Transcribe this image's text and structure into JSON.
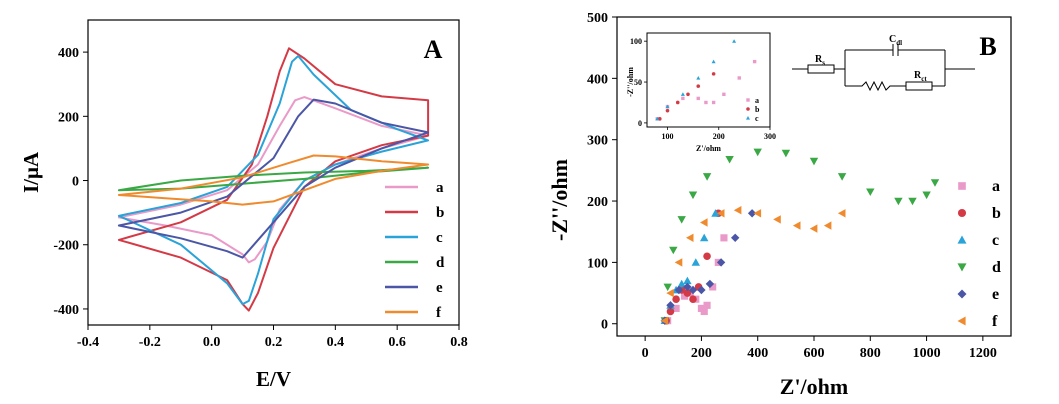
{
  "chart_data": [
    {
      "type": "line",
      "panel_label": "A",
      "xlabel": "E/V",
      "ylabel": "I/μA",
      "xlim": [
        -0.4,
        0.8
      ],
      "ylim": [
        -450,
        500
      ],
      "xticks": [
        "-0.4",
        "-0.2",
        "0.0",
        "0.2",
        "0.4",
        "0.6",
        "0.8"
      ],
      "yticks": [
        "-400",
        "-200",
        "0",
        "200",
        "400"
      ],
      "legend_position": "right",
      "colors": {
        "a": "#ea9ac8",
        "b": "#d43a46",
        "c": "#2aa3d8",
        "d": "#3aa845",
        "e": "#4b57a6",
        "f": "#ef8b2e"
      },
      "series": [
        {
          "name": "a",
          "x": [
            -0.3,
            -0.1,
            0.05,
            0.15,
            0.22,
            0.27,
            0.3,
            0.4,
            0.55,
            0.7,
            0.55,
            0.4,
            0.3,
            0.22,
            0.18,
            0.14,
            0.12,
            0.1,
            0.0,
            -0.15,
            -0.3
          ],
          "y": [
            -115,
            -75,
            -30,
            50,
            170,
            250,
            260,
            225,
            170,
            140,
            100,
            50,
            0,
            -90,
            -190,
            -245,
            -255,
            -230,
            -170,
            -140,
            -115
          ]
        },
        {
          "name": "b",
          "x": [
            -0.3,
            -0.1,
            0.05,
            0.13,
            0.18,
            0.22,
            0.25,
            0.3,
            0.4,
            0.55,
            0.7,
            0.7,
            0.55,
            0.4,
            0.3,
            0.2,
            0.15,
            0.12,
            0.1,
            0.05,
            -0.1,
            -0.3
          ],
          "y": [
            -185,
            -130,
            -60,
            50,
            200,
            340,
            412,
            380,
            300,
            262,
            250,
            140,
            110,
            60,
            -20,
            -210,
            -350,
            -405,
            -385,
            -310,
            -240,
            -185
          ]
        },
        {
          "name": "c",
          "x": [
            -0.3,
            -0.1,
            0.05,
            0.15,
            0.22,
            0.26,
            0.28,
            0.33,
            0.45,
            0.6,
            0.7,
            0.55,
            0.4,
            0.3,
            0.2,
            0.15,
            0.12,
            0.1,
            0.05,
            -0.1,
            -0.3
          ],
          "y": [
            -110,
            -70,
            -20,
            80,
            240,
            370,
            388,
            330,
            220,
            160,
            125,
            90,
            50,
            0,
            -120,
            -290,
            -375,
            -385,
            -320,
            -200,
            -110
          ]
        },
        {
          "name": "d",
          "x": [
            -0.3,
            -0.1,
            0.1,
            0.3,
            0.5,
            0.7,
            0.5,
            0.3,
            0.1,
            -0.1,
            -0.3
          ],
          "y": [
            -30,
            0,
            15,
            25,
            30,
            40,
            25,
            5,
            -10,
            -25,
            -30
          ]
        },
        {
          "name": "e",
          "x": [
            -0.3,
            -0.1,
            0.05,
            0.2,
            0.28,
            0.33,
            0.4,
            0.55,
            0.7,
            0.55,
            0.4,
            0.3,
            0.2,
            0.1,
            0.05,
            -0.1,
            -0.3
          ],
          "y": [
            -140,
            -100,
            -50,
            70,
            200,
            252,
            240,
            180,
            150,
            100,
            40,
            -20,
            -130,
            -240,
            -220,
            -180,
            -140
          ]
        },
        {
          "name": "f",
          "x": [
            -0.3,
            -0.1,
            0.1,
            0.25,
            0.33,
            0.4,
            0.55,
            0.7,
            0.55,
            0.4,
            0.3,
            0.2,
            0.1,
            0.0,
            -0.15,
            -0.3
          ],
          "y": [
            -45,
            -25,
            10,
            55,
            78,
            75,
            60,
            50,
            30,
            5,
            -30,
            -65,
            -75,
            -65,
            -55,
            -45
          ]
        }
      ]
    },
    {
      "type": "scatter",
      "panel_label": "B",
      "xlabel": "Z'/ohm",
      "ylabel": "-Z''/ohm",
      "xlim": [
        -100,
        1300
      ],
      "ylim": [
        -20,
        500
      ],
      "xticks": [
        "0",
        "200",
        "400",
        "600",
        "800",
        "1000",
        "1200"
      ],
      "yticks": [
        "0",
        "100",
        "200",
        "300",
        "400",
        "500"
      ],
      "legend_position": "right",
      "series": [
        {
          "name": "a",
          "color": "#ea9ac8",
          "marker": "square",
          "x": [
            80,
            110,
            140,
            160,
            180,
            200,
            210,
            220,
            240,
            260,
            280
          ],
          "y": [
            5,
            25,
            45,
            50,
            40,
            25,
            20,
            30,
            60,
            100,
            140
          ]
        },
        {
          "name": "b",
          "color": "#d43a46",
          "marker": "circle",
          "x": [
            75,
            90,
            110,
            130,
            150,
            170,
            190,
            220,
            260
          ],
          "y": [
            5,
            20,
            40,
            55,
            50,
            40,
            60,
            110,
            180
          ]
        },
        {
          "name": "c",
          "color": "#2aa3d8",
          "marker": "triangle-up",
          "x": [
            70,
            90,
            110,
            130,
            150,
            180,
            210,
            250
          ],
          "y": [
            5,
            30,
            55,
            65,
            70,
            100,
            140,
            180
          ]
        },
        {
          "name": "d",
          "color": "#3aa845",
          "marker": "triangle-down",
          "x": [
            70,
            80,
            100,
            130,
            170,
            220,
            300,
            400,
            500,
            600,
            700,
            800,
            900,
            950,
            1000,
            1030
          ],
          "y": [
            5,
            60,
            120,
            170,
            210,
            240,
            268,
            280,
            278,
            265,
            240,
            215,
            200,
            200,
            210,
            230
          ]
        },
        {
          "name": "e",
          "color": "#4b57a6",
          "marker": "diamond",
          "x": [
            70,
            90,
            120,
            150,
            170,
            200,
            230,
            270,
            320,
            380
          ],
          "y": [
            5,
            30,
            55,
            60,
            55,
            55,
            65,
            100,
            140,
            180
          ]
        },
        {
          "name": "f",
          "color": "#ef8b2e",
          "marker": "triangle-left",
          "x": [
            70,
            90,
            120,
            160,
            210,
            270,
            330,
            400,
            470,
            540,
            600,
            650,
            700
          ],
          "y": [
            5,
            50,
            100,
            140,
            165,
            180,
            185,
            180,
            170,
            160,
            155,
            160,
            180
          ]
        }
      ],
      "inset": {
        "xlabel": "Z'/ohm",
        "ylabel": "-Z''/ohm",
        "xlim": [
          60,
          300
        ],
        "ylim": [
          -5,
          110
        ],
        "xticks": [
          "100",
          "200",
          "300"
        ],
        "yticks": [
          "0",
          "50",
          "100"
        ],
        "series": [
          {
            "name": "a",
            "color": "#ea9ac8",
            "marker": "square",
            "x": [
              80,
              100,
              130,
              160,
              175,
              190,
              210,
              240,
              270
            ],
            "y": [
              5,
              20,
              30,
              30,
              25,
              25,
              35,
              55,
              75
            ]
          },
          {
            "name": "b",
            "color": "#d43a46",
            "marker": "circle",
            "x": [
              85,
              100,
              120,
              140,
              160,
              190
            ],
            "y": [
              5,
              15,
              25,
              35,
              45,
              60
            ]
          },
          {
            "name": "c",
            "color": "#2aa3d8",
            "marker": "triangle-up",
            "x": [
              80,
              100,
              130,
              160,
              190,
              230
            ],
            "y": [
              5,
              20,
              35,
              55,
              75,
              100
            ]
          }
        ]
      },
      "circuit": {
        "labels": [
          "R",
          "C",
          "R"
        ],
        "subscripts": [
          "s",
          "dl",
          "ct"
        ]
      }
    }
  ]
}
